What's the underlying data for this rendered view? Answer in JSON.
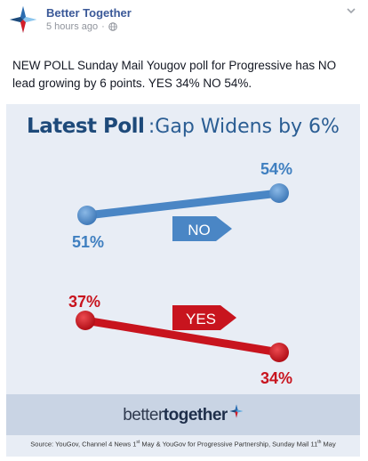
{
  "post": {
    "page_name": "Better Together",
    "timestamp": "5 hours ago",
    "text": "NEW POLL Sunday Mail Yougov poll for Progressive has NO lead growing by 6 points. YES 34% NO 54%."
  },
  "infographic": {
    "headline_bold": "Latest Poll",
    "headline_rest": ":Gap Widens by 6%",
    "brand_regular": "better",
    "brand_bold": "together",
    "source_parts": [
      "Source: YouGov, Channel 4 News 1",
      "st",
      " May & YouGov for Progressive Partnership, Sunday Mail 11",
      "th",
      " May"
    ]
  },
  "chart_data": {
    "type": "line",
    "series": [
      {
        "name": "NO",
        "values": [
          51,
          54
        ],
        "labels": [
          "51%",
          "54%"
        ],
        "color": "#4a86c5"
      },
      {
        "name": "YES",
        "values": [
          37,
          34
        ],
        "labels": [
          "37%",
          "34%"
        ],
        "color": "#c8141e"
      }
    ]
  },
  "colors": {
    "facebook_blue": "#3b5998",
    "no_blue": "#4a86c5",
    "yes_red": "#c8141e",
    "headline_navy": "#1e4a7a"
  },
  "icons": {
    "avatar": "better-together-star-logo",
    "privacy": "globe-icon",
    "menu": "chevron-down-icon"
  }
}
